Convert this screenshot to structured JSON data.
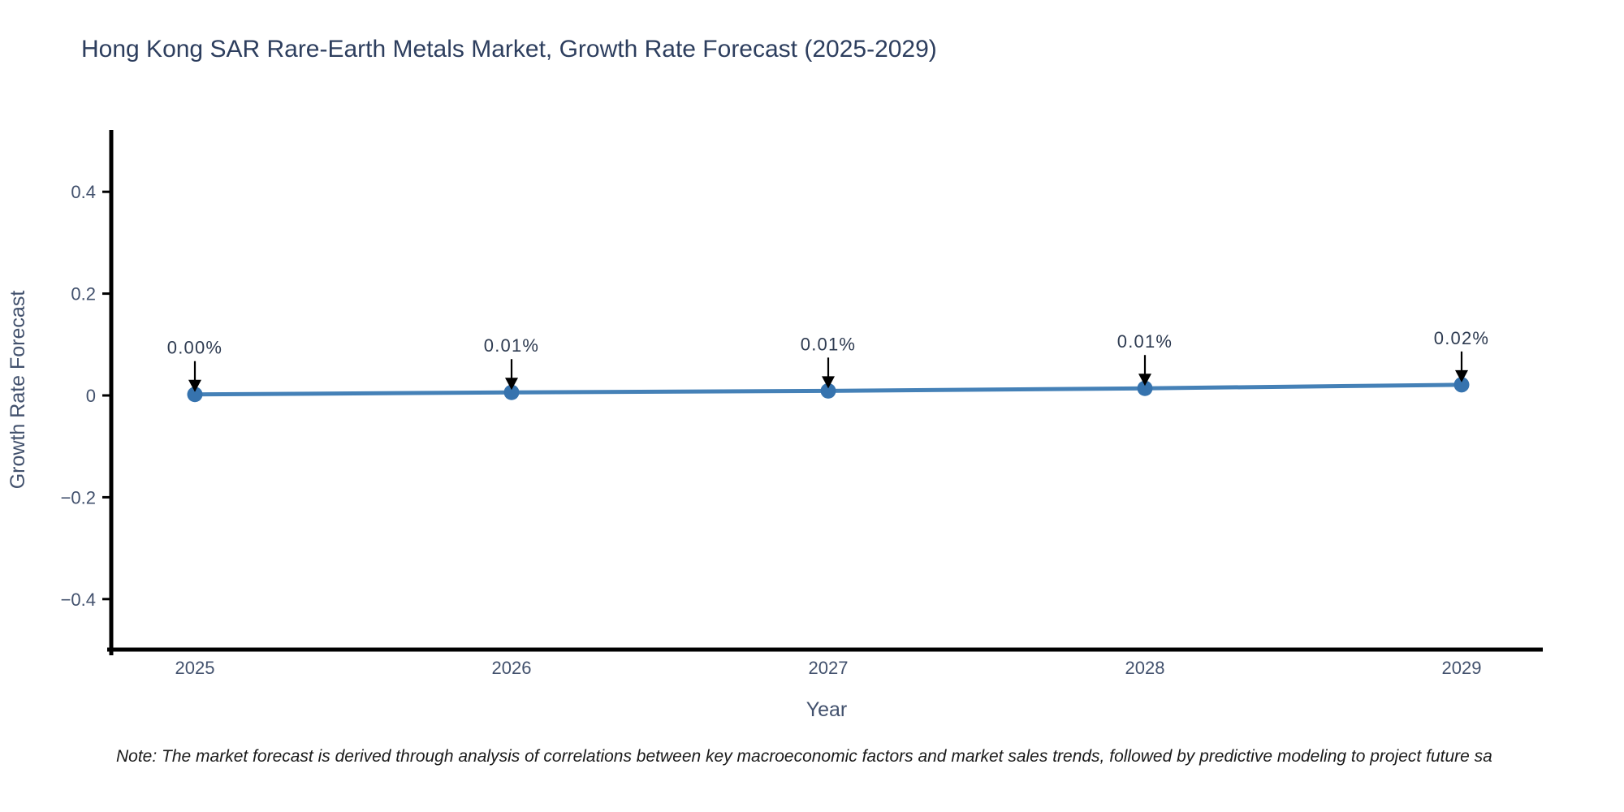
{
  "page": {
    "background": "#ffffff"
  },
  "chart_data": {
    "type": "line",
    "title": "Hong Kong SAR Rare-Earth Metals Market, Growth Rate Forecast (2025-2029)",
    "xlabel": "Year",
    "ylabel": "Growth Rate Forecast",
    "x": [
      2025,
      2026,
      2027,
      2028,
      2029
    ],
    "values": [
      0.002,
      0.006,
      0.009,
      0.014,
      0.021
    ],
    "point_labels": [
      "0.00%",
      "0.01%",
      "0.01%",
      "0.01%",
      "0.02%"
    ],
    "yticks": [
      0.4,
      0.2,
      0,
      -0.2,
      -0.4
    ],
    "ytick_labels": [
      "0.4",
      "0.2",
      "0",
      "−0.2",
      "−0.4"
    ],
    "ylim": [
      -0.5,
      0.52
    ],
    "grid": false,
    "legend": false,
    "annotation_arrows": true,
    "line_color": "#4581b7",
    "marker_color": "#3673ae",
    "axis_color": "#000000",
    "arrow_color": "#000000",
    "title_color": "#2d3e5e",
    "tick_color": "#42516d",
    "annotation_color": "#2e3b51",
    "note": "Note: The market forecast is derived through analysis of correlations between key macroeconomic factors and market sales trends, followed by predictive modeling to project future sa"
  }
}
